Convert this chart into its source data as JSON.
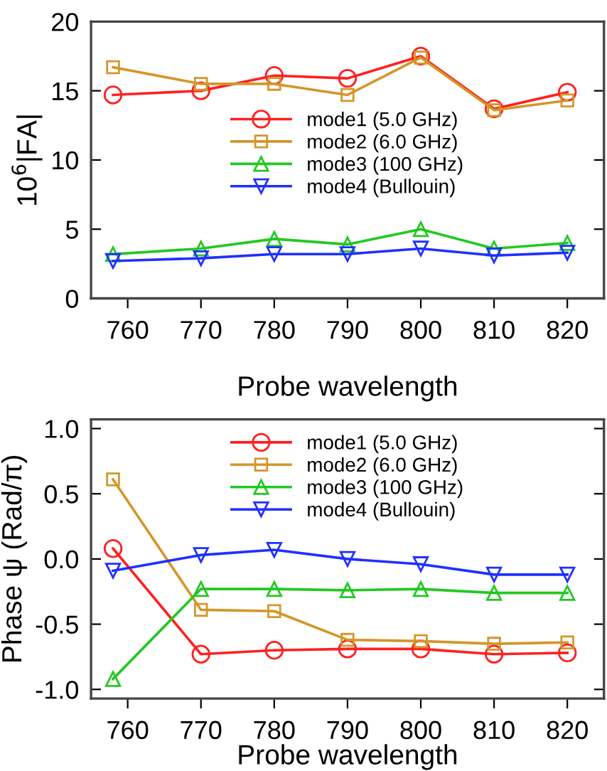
{
  "chart_data": [
    {
      "type": "line",
      "xlabel": "Probe wavelength",
      "ylabel": "10$^{6}$|FA|",
      "x": [
        758,
        770,
        780,
        790,
        800,
        810,
        820
      ],
      "xlim": [
        755,
        825
      ],
      "xticks": [
        760,
        770,
        780,
        790,
        800,
        810,
        820
      ],
      "ylim": [
        0,
        20
      ],
      "yticks": [
        0,
        5,
        10,
        15,
        20
      ],
      "legend": "center",
      "grid": false,
      "series": [
        {
          "name": "mode1 (5.0 GHz)",
          "color": "#ff2020",
          "marker": "circle",
          "values": [
            14.7,
            15.0,
            16.1,
            15.9,
            17.5,
            13.7,
            14.9
          ]
        },
        {
          "name": "mode2 (6.0 GHz)",
          "color": "#d4962a",
          "marker": "square",
          "values": [
            16.7,
            15.5,
            15.5,
            14.7,
            17.4,
            13.6,
            14.3
          ]
        },
        {
          "name": "mode3 (100 GHz)",
          "color": "#22c822",
          "marker": "triangle",
          "values": [
            3.2,
            3.6,
            4.3,
            3.9,
            5.0,
            3.6,
            4.0
          ]
        },
        {
          "name": "mode4 (Bullouin)",
          "color": "#2030ff",
          "marker": "triangle_down",
          "values": [
            2.7,
            2.9,
            3.2,
            3.2,
            3.6,
            3.1,
            3.3
          ]
        }
      ]
    },
    {
      "type": "line",
      "xlabel": "Probe wavelength",
      "ylabel": "Phase ψ (Rad/π)",
      "x": [
        758,
        770,
        780,
        790,
        800,
        810,
        820
      ],
      "xlim": [
        755,
        825
      ],
      "xticks": [
        760,
        770,
        780,
        790,
        800,
        810,
        820
      ],
      "ylim": [
        -1.07,
        1.07
      ],
      "yticks": [
        {
          "value": -1.0,
          "label": "-1.0"
        },
        {
          "value": -0.5,
          "label": "-0.5"
        },
        {
          "value": 0.0,
          "label": "0.0"
        },
        {
          "value": 0.5,
          "label": "0.5"
        },
        {
          "value": 1.0,
          "label": "1.0"
        }
      ],
      "legend": "top",
      "grid": false,
      "series": [
        {
          "name": "mode1 (5.0 GHz)",
          "color": "#ff2020",
          "marker": "circle",
          "values": [
            0.08,
            -0.73,
            -0.7,
            -0.69,
            -0.69,
            -0.73,
            -0.72
          ]
        },
        {
          "name": "mode2 (6.0 GHz)",
          "color": "#d4962a",
          "marker": "square",
          "values": [
            0.61,
            -0.39,
            -0.4,
            -0.62,
            -0.63,
            -0.65,
            -0.64
          ]
        },
        {
          "name": "mode3 (100 GHz)",
          "color": "#22c822",
          "marker": "triangle",
          "values": [
            -0.92,
            -0.23,
            -0.23,
            -0.24,
            -0.23,
            -0.26,
            -0.26
          ]
        },
        {
          "name": "mode4 (Bullouin)",
          "color": "#2030ff",
          "marker": "triangle_down",
          "values": [
            -0.09,
            0.03,
            0.07,
            0.0,
            -0.04,
            -0.12,
            -0.12
          ]
        }
      ]
    }
  ]
}
